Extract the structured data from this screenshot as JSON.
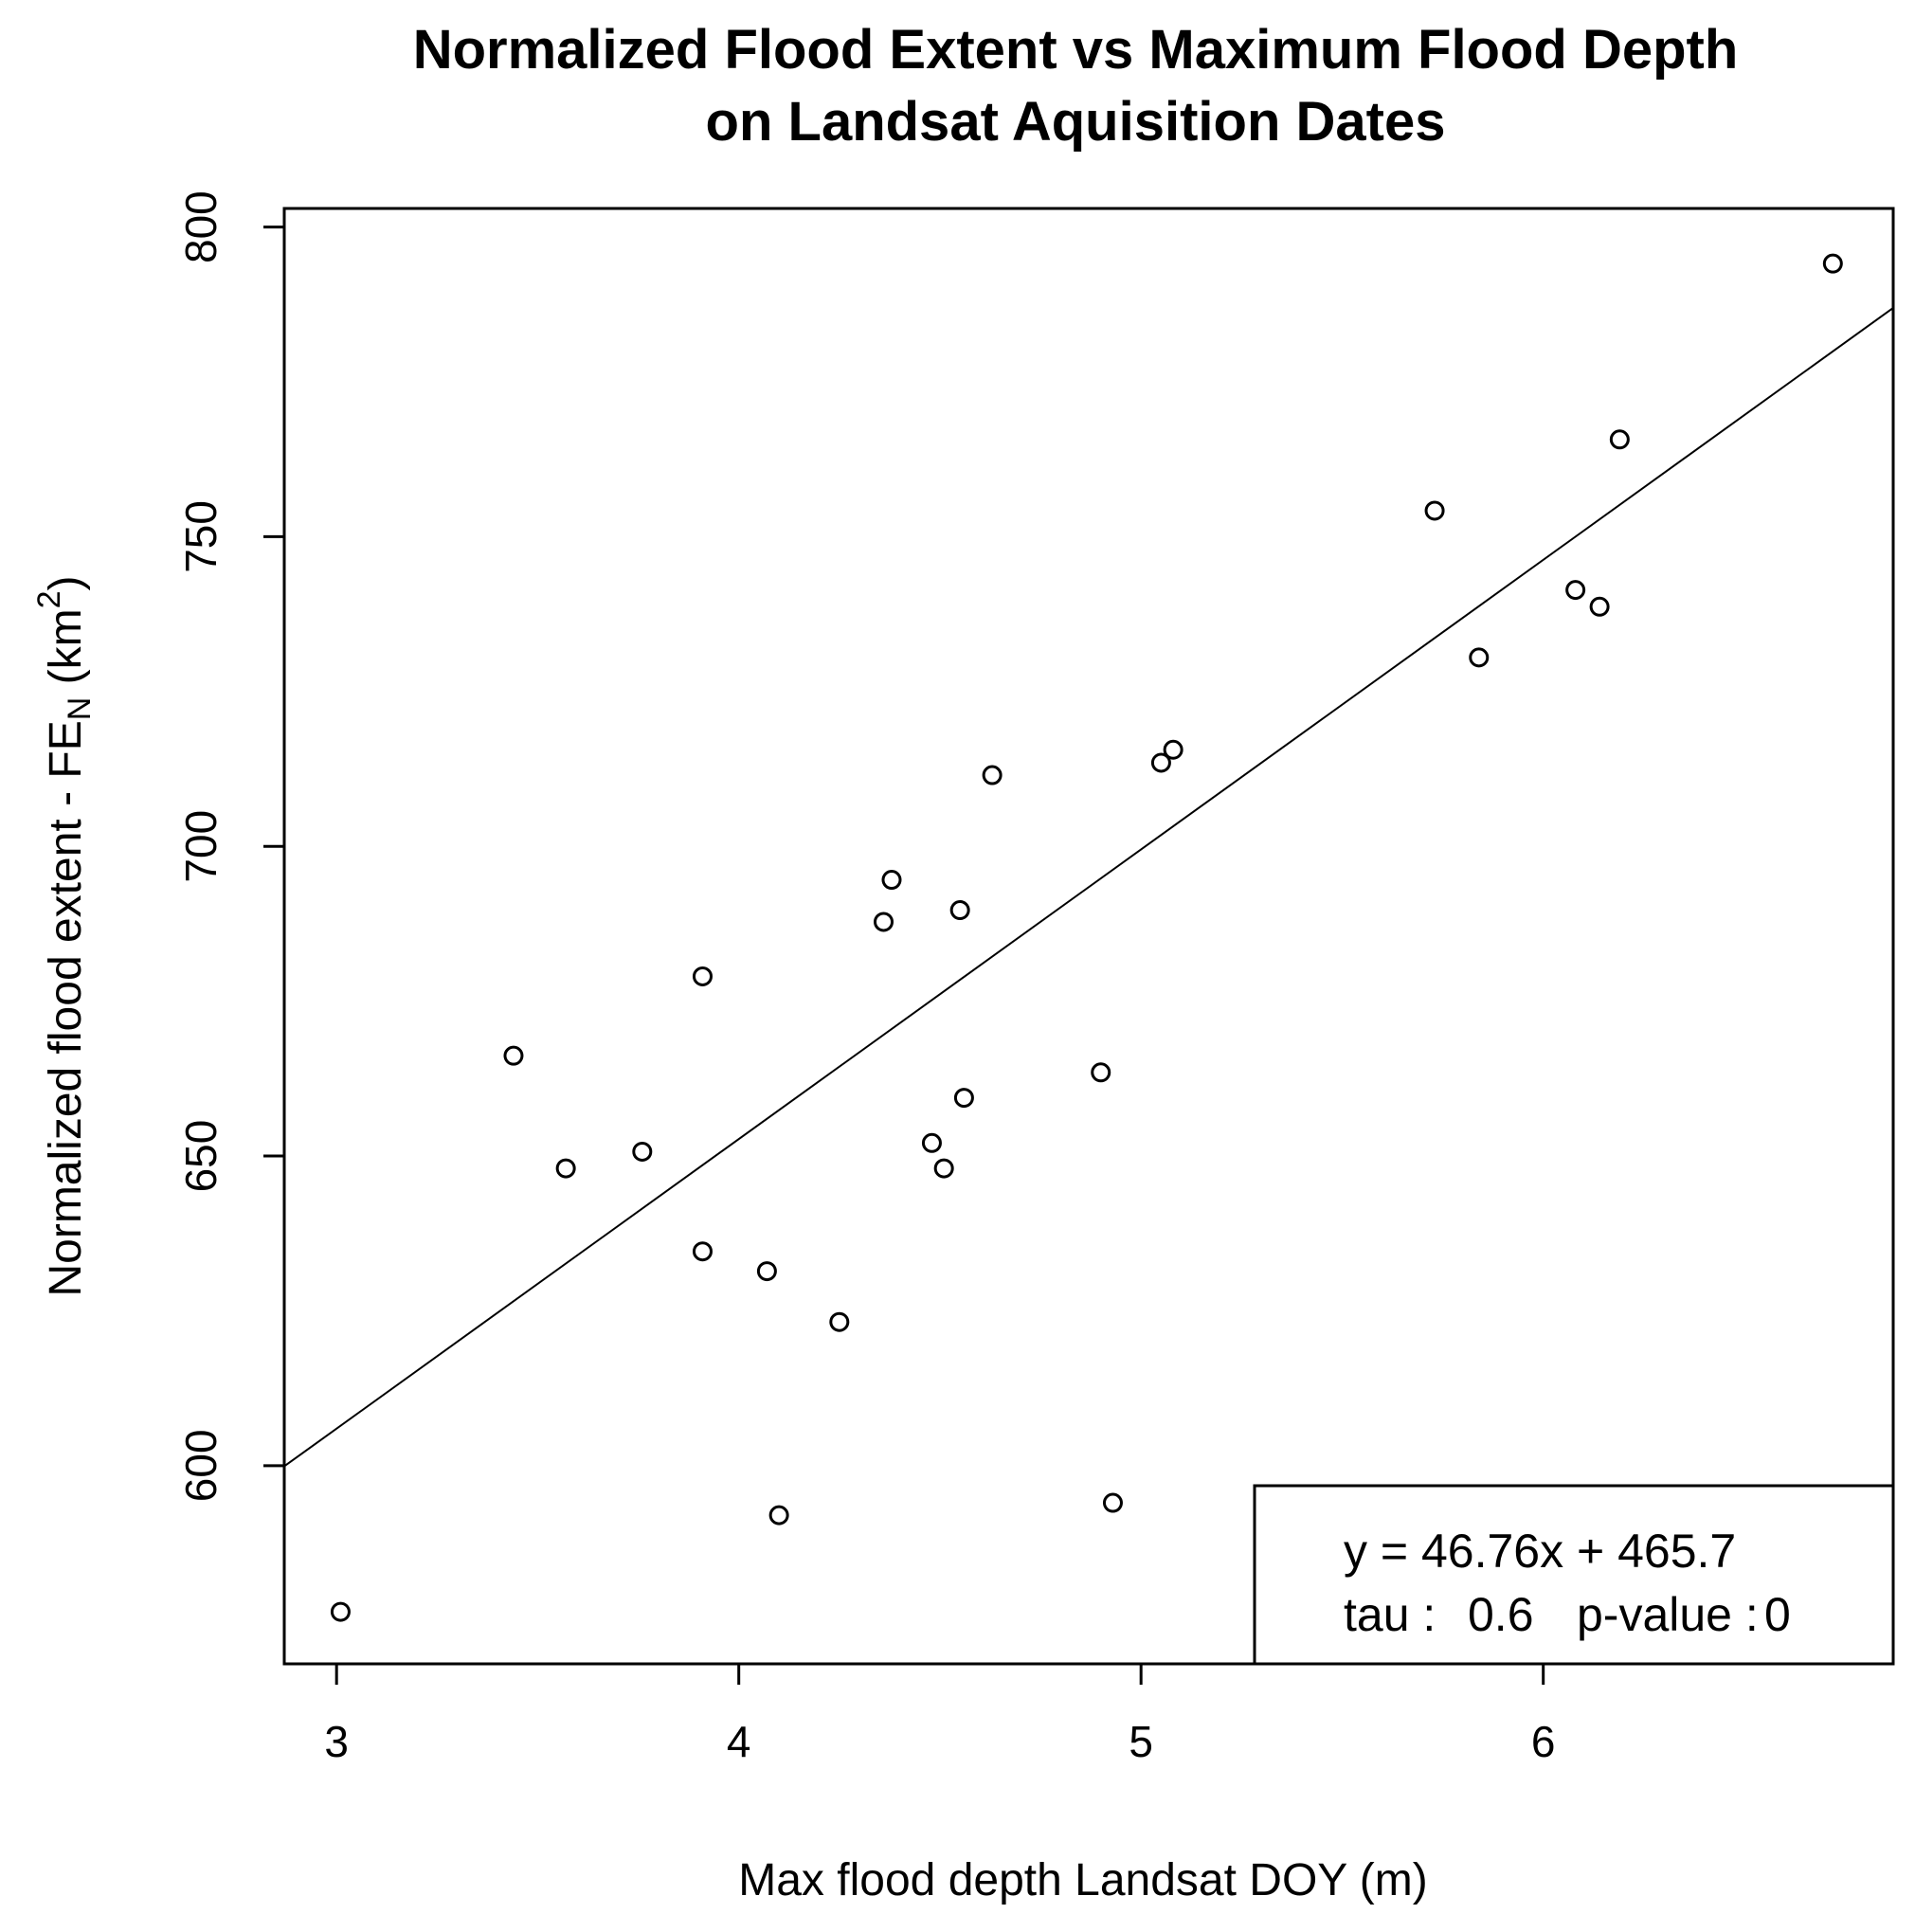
{
  "chart_data": {
    "type": "scatter",
    "title": [
      "Normalized Flood Extent vs Maximum Flood Depth",
      "on Landsat Aquisition Dates"
    ],
    "xlabel": "Max flood depth Landsat DOY (m)",
    "ylabel": {
      "prefix": "Normalized flood extent - FE",
      "subscript": "N",
      "unit_open": " (km",
      "superscript": "2",
      "unit_close": ")"
    },
    "xlim": [
      2.87,
      6.87
    ],
    "ylim": [
      568,
      803
    ],
    "x_ticks": [
      3,
      4,
      5,
      6
    ],
    "y_ticks": [
      600,
      650,
      700,
      750,
      800
    ],
    "grid": false,
    "points": [
      {
        "x": 3.01,
        "y": 576.4
      },
      {
        "x": 3.44,
        "y": 666.2
      },
      {
        "x": 3.57,
        "y": 648.0
      },
      {
        "x": 3.76,
        "y": 650.7
      },
      {
        "x": 3.91,
        "y": 679.0
      },
      {
        "x": 3.91,
        "y": 634.6
      },
      {
        "x": 4.07,
        "y": 631.4
      },
      {
        "x": 4.1,
        "y": 592.0
      },
      {
        "x": 4.25,
        "y": 623.2
      },
      {
        "x": 4.36,
        "y": 687.8
      },
      {
        "x": 4.38,
        "y": 694.6
      },
      {
        "x": 4.48,
        "y": 652.1
      },
      {
        "x": 4.51,
        "y": 648.0
      },
      {
        "x": 4.55,
        "y": 689.7
      },
      {
        "x": 4.56,
        "y": 659.4
      },
      {
        "x": 4.63,
        "y": 711.5
      },
      {
        "x": 4.9,
        "y": 663.5
      },
      {
        "x": 4.93,
        "y": 594.0
      },
      {
        "x": 5.05,
        "y": 713.5
      },
      {
        "x": 5.08,
        "y": 715.6
      },
      {
        "x": 5.73,
        "y": 754.2
      },
      {
        "x": 5.84,
        "y": 730.5
      },
      {
        "x": 6.08,
        "y": 741.4
      },
      {
        "x": 6.14,
        "y": 738.7
      },
      {
        "x": 6.19,
        "y": 765.7
      },
      {
        "x": 6.72,
        "y": 794.1
      }
    ],
    "regression": {
      "slope": 46.76,
      "intercept": 465.7
    },
    "legend": {
      "position": "bottom-right",
      "equation": "y = 46.76x + 465.7",
      "tau_label": "tau :",
      "tau_value": "0.6",
      "p_label": "p-value :",
      "p_value": "0"
    }
  }
}
